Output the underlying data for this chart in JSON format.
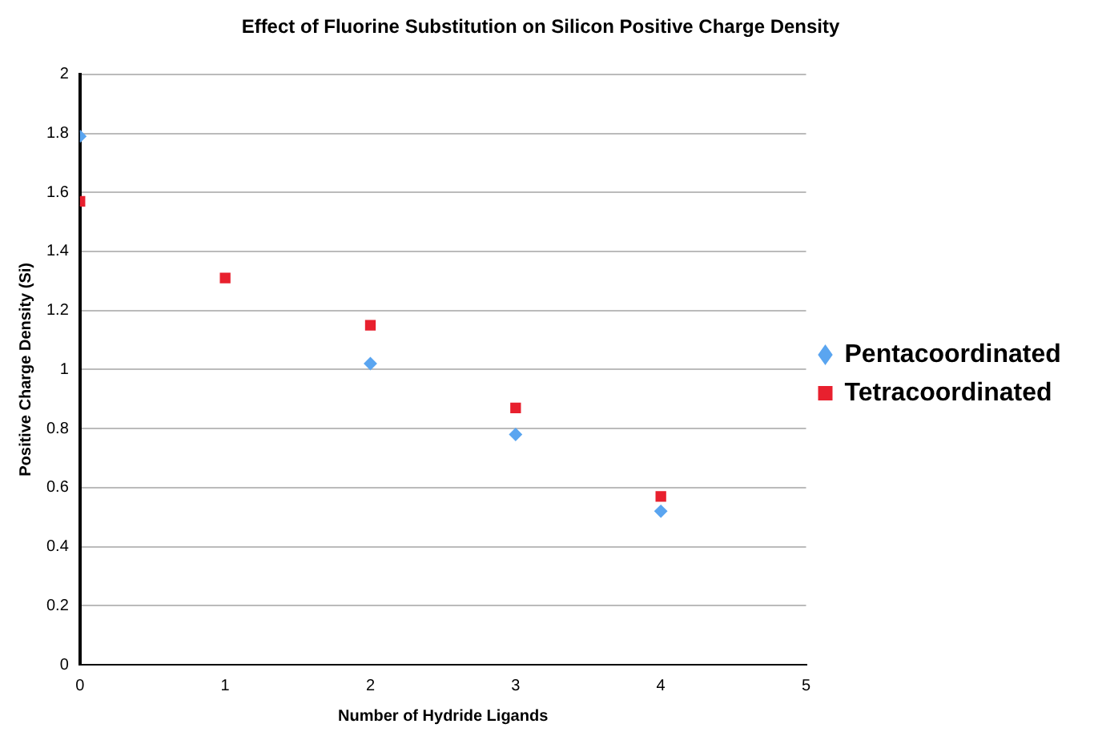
{
  "chart_data": {
    "type": "scatter",
    "title": "Effect of Fluorine Substitution on Silicon Positive Charge Density",
    "xlabel": "Number of Hydride Ligands",
    "ylabel": "Positive Charge Density (Si)",
    "x": [
      0,
      1,
      2,
      3,
      4
    ],
    "series": [
      {
        "name": "Pentacoordinated",
        "color": "#5aa5f0",
        "marker": "diamond",
        "values": [
          1.79,
          null,
          1.02,
          0.78,
          0.52
        ]
      },
      {
        "name": "Tetracoordinated",
        "color": "#e8202e",
        "marker": "square",
        "values": [
          1.57,
          1.31,
          1.15,
          0.87,
          0.57
        ]
      }
    ],
    "xlim": [
      0,
      5
    ],
    "xticks": [
      0,
      1,
      2,
      3,
      4,
      5
    ],
    "ylim": [
      0,
      2
    ],
    "yticks": [
      0,
      {
        "value": 0.2,
        "label": "0.2"
      },
      {
        "value": 0.4,
        "label": "0.4"
      },
      {
        "value": 0.6,
        "label": "0.6"
      },
      {
        "value": 0.8,
        "label": "0.8"
      },
      1,
      {
        "value": 1.2,
        "label": "1.2"
      },
      {
        "value": 1.4,
        "label": "1.4"
      },
      {
        "value": 1.6,
        "label": "1.6"
      },
      {
        "value": 1.8,
        "label": "1.8"
      },
      2
    ],
    "grid": "y",
    "legend": "right"
  }
}
